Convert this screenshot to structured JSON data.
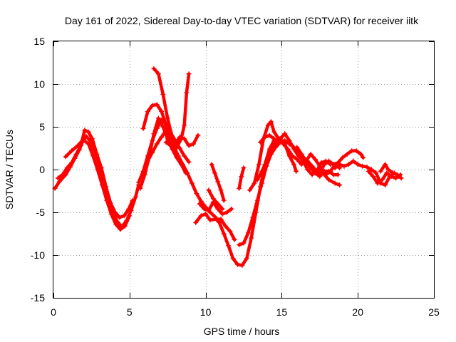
{
  "chart_data": {
    "type": "scatter",
    "title": "Day 161 of 2022, Sidereal Day-to-day VTEC variation (SDTVAR) for receiver iitk",
    "xlabel": "GPS time / hours",
    "ylabel": "SDTVAR / TECUs",
    "xlim": [
      0,
      25
    ],
    "ylim": [
      -15,
      15
    ],
    "xticks": [
      0,
      5,
      10,
      15,
      20,
      25
    ],
    "yticks": [
      -15,
      -10,
      -5,
      0,
      5,
      10,
      15
    ],
    "grid": true,
    "marker": "plus",
    "color": "#ff0000",
    "series": [
      {
        "name": "s1",
        "points": [
          [
            0.1,
            -2.2
          ],
          [
            0.4,
            -1.4
          ],
          [
            0.8,
            -0.6
          ],
          [
            1.1,
            0.3
          ],
          [
            1.4,
            1.3
          ],
          [
            1.7,
            2.3
          ],
          [
            1.9,
            3.2
          ],
          [
            2.15,
            3.9
          ],
          [
            2.4,
            3.4
          ],
          [
            2.7,
            2.2
          ],
          [
            3.0,
            0.6
          ],
          [
            3.3,
            -1.3
          ],
          [
            3.6,
            -3.2
          ],
          [
            3.9,
            -4.9
          ],
          [
            4.2,
            -6.1
          ],
          [
            4.5,
            -6.7
          ],
          [
            4.8,
            -6.0
          ],
          [
            5.1,
            -4.8
          ],
          [
            5.4,
            -3.2
          ],
          [
            5.6,
            -1.8
          ]
        ]
      },
      {
        "name": "s2",
        "points": [
          [
            0.3,
            -1.0
          ],
          [
            0.6,
            -0.6
          ],
          [
            0.9,
            0.2
          ],
          [
            1.2,
            0.8
          ],
          [
            1.5,
            1.8
          ],
          [
            1.8,
            2.8
          ],
          [
            2.05,
            4.6
          ],
          [
            2.3,
            4.4
          ],
          [
            2.55,
            3.6
          ],
          [
            2.85,
            1.8
          ],
          [
            3.15,
            0.2
          ],
          [
            3.45,
            -2.0
          ],
          [
            3.75,
            -3.9
          ],
          [
            4.05,
            -5.0
          ],
          [
            4.35,
            -5.6
          ],
          [
            4.65,
            -5.4
          ],
          [
            4.95,
            -4.6
          ],
          [
            5.2,
            -3.6
          ]
        ]
      },
      {
        "name": "s3",
        "points": [
          [
            0.8,
            1.5
          ],
          [
            1.2,
            2.2
          ],
          [
            1.6,
            2.8
          ],
          [
            1.95,
            3.5
          ],
          [
            2.3,
            3.0
          ],
          [
            2.6,
            1.6
          ],
          [
            2.9,
            0.0
          ],
          [
            3.2,
            -1.8
          ],
          [
            3.5,
            -3.6
          ],
          [
            3.8,
            -5.2
          ],
          [
            4.1,
            -6.4
          ],
          [
            4.4,
            -7.0
          ],
          [
            4.7,
            -6.6
          ],
          [
            5.0,
            -5.4
          ]
        ]
      },
      {
        "name": "s4",
        "points": [
          [
            5.6,
            -1.5
          ],
          [
            5.9,
            -0.2
          ],
          [
            6.2,
            1.6
          ],
          [
            6.5,
            3.4
          ],
          [
            6.8,
            4.8
          ],
          [
            7.1,
            5.8
          ],
          [
            7.35,
            5.4
          ],
          [
            7.6,
            4.1
          ],
          [
            7.9,
            2.8
          ],
          [
            8.2,
            1.6
          ],
          [
            8.5,
            0.6
          ],
          [
            8.8,
            -0.4
          ],
          [
            9.1,
            -1.6
          ],
          [
            9.4,
            -2.8
          ],
          [
            9.7,
            -3.7
          ],
          [
            10.0,
            -4.4
          ],
          [
            10.3,
            -5.0
          ],
          [
            10.6,
            -5.5
          ],
          [
            10.9,
            -6.2
          ],
          [
            11.2,
            -7.5
          ],
          [
            11.5,
            -8.9
          ],
          [
            11.8,
            -10.4
          ],
          [
            12.1,
            -11.1
          ],
          [
            12.4,
            -11.2
          ],
          [
            12.7,
            -10.4
          ],
          [
            13.0,
            -8.0
          ],
          [
            13.3,
            -5.0
          ],
          [
            13.6,
            -2.0
          ],
          [
            13.9,
            0.6
          ],
          [
            14.2,
            2.4
          ],
          [
            14.5,
            3.4
          ]
        ]
      },
      {
        "name": "s5",
        "points": [
          [
            5.7,
            -2.2
          ],
          [
            6.0,
            -0.6
          ],
          [
            6.3,
            1.6
          ],
          [
            6.6,
            4.2
          ],
          [
            6.9,
            6.0
          ],
          [
            7.2,
            5.0
          ],
          [
            7.5,
            3.6
          ],
          [
            7.8,
            2.4
          ],
          [
            8.1,
            1.4
          ],
          [
            8.4,
            0.6
          ],
          [
            8.7,
            -0.4
          ]
        ]
      },
      {
        "name": "s6",
        "points": [
          [
            5.9,
            4.8
          ],
          [
            6.2,
            6.8
          ],
          [
            6.5,
            7.5
          ],
          [
            6.8,
            7.6
          ],
          [
            7.1,
            6.8
          ],
          [
            7.4,
            5.2
          ],
          [
            7.7,
            3.6
          ],
          [
            8.0,
            2.4
          ]
        ]
      },
      {
        "name": "s7",
        "points": [
          [
            6.2,
            1.0
          ],
          [
            6.5,
            2.0
          ],
          [
            6.8,
            3.0
          ],
          [
            7.1,
            3.8
          ],
          [
            7.4,
            4.6
          ],
          [
            7.7,
            4.3
          ],
          [
            8.0,
            3.4
          ],
          [
            8.3,
            2.5
          ],
          [
            8.6,
            1.6
          ],
          [
            8.9,
            0.9
          ]
        ]
      },
      {
        "name": "s8",
        "points": [
          [
            6.6,
            11.8
          ],
          [
            6.9,
            11.2
          ],
          [
            7.2,
            8.8
          ],
          [
            7.5,
            6.0
          ],
          [
            7.8,
            3.8
          ],
          [
            8.1,
            2.6
          ],
          [
            8.4,
            3.6
          ],
          [
            8.6,
            5.2
          ],
          [
            8.75,
            9.0
          ],
          [
            8.9,
            11.2
          ]
        ]
      },
      {
        "name": "s9",
        "points": [
          [
            7.4,
            3.2
          ],
          [
            7.7,
            2.8
          ],
          [
            8.0,
            3.0
          ],
          [
            8.3,
            3.8
          ],
          [
            8.6,
            3.6
          ],
          [
            8.9,
            2.8
          ],
          [
            9.2,
            3.0
          ],
          [
            9.5,
            4.0
          ]
        ]
      },
      {
        "name": "s10",
        "points": [
          [
            9.35,
            -6.2
          ],
          [
            9.7,
            -5.4
          ],
          [
            10.0,
            -5.2
          ],
          [
            10.3,
            -5.9
          ],
          [
            10.7,
            -5.8
          ],
          [
            11.0,
            -5.8
          ],
          [
            11.3,
            -6.6
          ],
          [
            11.6,
            -7.2
          ],
          [
            11.9,
            -8.2
          ]
        ]
      },
      {
        "name": "s11",
        "points": [
          [
            9.6,
            -4.0
          ],
          [
            9.9,
            -4.6
          ],
          [
            10.2,
            -4.8
          ],
          [
            10.5,
            -3.8
          ],
          [
            10.8,
            -4.6
          ],
          [
            11.1,
            -5.2
          ],
          [
            11.4,
            -5.0
          ],
          [
            11.7,
            -4.6
          ]
        ]
      },
      {
        "name": "s12",
        "points": [
          [
            10.2,
            -2.4
          ],
          [
            10.5,
            -3.4
          ],
          [
            10.8,
            -4.0
          ],
          [
            11.1,
            -4.6
          ]
        ]
      },
      {
        "name": "s13",
        "points": [
          [
            10.4,
            0.6
          ],
          [
            10.6,
            -0.4
          ],
          [
            10.8,
            -1.4
          ],
          [
            11.0,
            -2.4
          ],
          [
            11.2,
            -3.6
          ]
        ]
      },
      {
        "name": "s14",
        "points": [
          [
            12.2,
            -2.2
          ],
          [
            12.35,
            -0.8
          ],
          [
            12.5,
            0.2
          ]
        ]
      },
      {
        "name": "s15",
        "points": [
          [
            12.2,
            -8.8
          ],
          [
            12.5,
            -8.6
          ],
          [
            12.8,
            -7.4
          ],
          [
            13.1,
            -5.6
          ],
          [
            13.4,
            -3.6
          ],
          [
            13.7,
            -1.6
          ],
          [
            14.0,
            0.4
          ],
          [
            14.3,
            1.8
          ],
          [
            14.6,
            2.6
          ],
          [
            14.9,
            3.2
          ],
          [
            15.2,
            3.4
          ],
          [
            15.5,
            3.0
          ],
          [
            15.8,
            2.6
          ],
          [
            16.1,
            1.9
          ],
          [
            16.4,
            1.4
          ],
          [
            16.7,
            1.0
          ],
          [
            17.0,
            0.4
          ],
          [
            17.3,
            -0.2
          ],
          [
            17.6,
            0.0
          ],
          [
            17.9,
            -0.6
          ],
          [
            18.2,
            -0.2
          ],
          [
            18.5,
            0.6
          ],
          [
            18.8,
            0.2
          ]
        ]
      },
      {
        "name": "s16",
        "points": [
          [
            12.9,
            -2.4
          ],
          [
            13.2,
            -1.6
          ],
          [
            13.5,
            0.6
          ],
          [
            13.8,
            3.6
          ],
          [
            14.1,
            5.2
          ],
          [
            14.3,
            5.6
          ],
          [
            14.5,
            4.4
          ],
          [
            14.8,
            3.6
          ],
          [
            15.1,
            3.0
          ],
          [
            15.4,
            2.4
          ],
          [
            15.7,
            1.6
          ],
          [
            16.0,
            1.2
          ],
          [
            16.3,
            0.6
          ],
          [
            16.6,
            1.0
          ],
          [
            16.9,
            1.8
          ],
          [
            17.2,
            1.2
          ],
          [
            17.5,
            0.4
          ],
          [
            17.8,
            -0.6
          ],
          [
            18.1,
            -1.2
          ],
          [
            18.5,
            -1.6
          ],
          [
            18.8,
            -1.8
          ]
        ]
      },
      {
        "name": "s17",
        "points": [
          [
            13.6,
            3.2
          ],
          [
            13.9,
            3.8
          ],
          [
            14.2,
            4.0
          ],
          [
            14.5,
            3.6
          ],
          [
            14.8,
            3.2
          ],
          [
            15.0,
            3.8
          ],
          [
            15.2,
            4.2
          ],
          [
            15.5,
            3.4
          ],
          [
            15.8,
            2.4
          ],
          [
            16.1,
            1.6
          ],
          [
            16.4,
            1.0
          ],
          [
            16.7,
            0.0
          ],
          [
            17.0,
            -0.6
          ],
          [
            17.3,
            -0.2
          ],
          [
            17.6,
            0.8
          ],
          [
            17.9,
            1.0
          ],
          [
            18.2,
            0.6
          ]
        ]
      },
      {
        "name": "s18",
        "points": [
          [
            13.4,
            -1.2
          ],
          [
            13.7,
            -0.2
          ],
          [
            14.0,
            1.0
          ],
          [
            14.3,
            2.0
          ],
          [
            14.6,
            3.0
          ],
          [
            14.9,
            3.6
          ],
          [
            15.2,
            3.0
          ],
          [
            15.5,
            1.6
          ],
          [
            15.8,
            0.6
          ],
          [
            15.95,
            -0.2
          ]
        ]
      },
      {
        "name": "s19",
        "points": [
          [
            16.0,
            2.6
          ],
          [
            16.3,
            1.8
          ],
          [
            16.6,
            1.0
          ],
          [
            16.9,
            0.2
          ],
          [
            17.2,
            -0.4
          ],
          [
            17.5,
            -0.8
          ],
          [
            17.8,
            -0.2
          ],
          [
            18.1,
            -0.2
          ],
          [
            18.4,
            -0.6
          ],
          [
            18.7,
            -0.6
          ]
        ]
      },
      {
        "name": "s20",
        "points": [
          [
            17.5,
            -0.4
          ],
          [
            17.8,
            0.6
          ],
          [
            18.1,
            1.0
          ],
          [
            18.4,
            0.6
          ],
          [
            18.7,
            0.8
          ],
          [
            19.0,
            1.4
          ],
          [
            19.3,
            1.8
          ],
          [
            19.6,
            2.2
          ],
          [
            19.9,
            2.2
          ],
          [
            20.2,
            1.8
          ],
          [
            20.35,
            1.4
          ]
        ]
      },
      {
        "name": "s21",
        "points": [
          [
            18.5,
            0.2
          ],
          [
            18.8,
            0.6
          ],
          [
            19.1,
            0.4
          ],
          [
            19.4,
            0.6
          ],
          [
            19.7,
            1.0
          ],
          [
            20.0,
            0.6
          ],
          [
            20.3,
            0.4
          ],
          [
            20.6,
            0.3
          ],
          [
            20.9,
            0.0
          ],
          [
            21.2,
            -0.4
          ],
          [
            21.5,
            -1.6
          ],
          [
            21.8,
            -1.8
          ],
          [
            22.1,
            -0.8
          ],
          [
            22.4,
            -0.4
          ],
          [
            22.7,
            -0.8
          ]
        ]
      },
      {
        "name": "s22",
        "points": [
          [
            20.7,
            -0.2
          ],
          [
            21.0,
            -0.8
          ],
          [
            21.3,
            -1.6
          ],
          [
            21.6,
            -1.2
          ],
          [
            21.9,
            -0.4
          ],
          [
            22.2,
            -0.8
          ],
          [
            22.5,
            -1.0
          ],
          [
            22.8,
            -0.6
          ]
        ]
      },
      {
        "name": "s23",
        "points": [
          [
            21.5,
            -0.2
          ],
          [
            21.8,
            0.6
          ],
          [
            22.0,
            0.0
          ],
          [
            22.3,
            -0.4
          ],
          [
            22.6,
            -0.6
          ],
          [
            22.85,
            -1.0
          ]
        ]
      }
    ]
  }
}
